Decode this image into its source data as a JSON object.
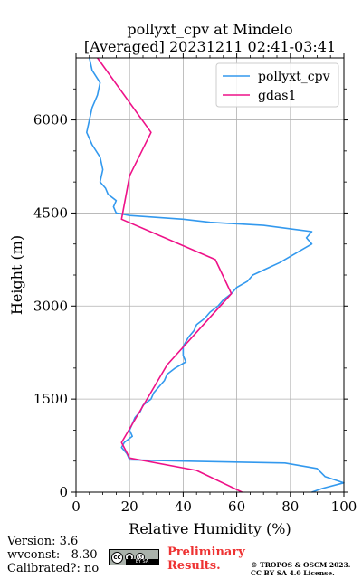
{
  "chart_data": {
    "type": "line",
    "title": "pollyxt_cpv at Mindelo",
    "subtitle": "[Averaged] 20231211 02:41-03:41",
    "xlabel": "Relative Humidity (%)",
    "ylabel": "Height (m)",
    "xlim": [
      0,
      100
    ],
    "ylim": [
      0,
      7000
    ],
    "xticks": [
      "0",
      "20",
      "40",
      "60",
      "80",
      "100"
    ],
    "yticks": [
      "0",
      "1500",
      "3000",
      "4500",
      "6000"
    ],
    "grid": true,
    "legend_position": "top-right",
    "series": [
      {
        "name": "pollyxt_cpv",
        "color": "#3399ee",
        "points": [
          [
            88,
            0
          ],
          [
            92,
            60
          ],
          [
            100,
            150
          ],
          [
            93,
            250
          ],
          [
            90,
            380
          ],
          [
            78,
            470
          ],
          [
            40,
            500
          ],
          [
            20,
            520
          ],
          [
            19,
            620
          ],
          [
            17,
            720
          ],
          [
            18,
            800
          ],
          [
            21,
            900
          ],
          [
            20,
            1000
          ],
          [
            21,
            1100
          ],
          [
            22,
            1200
          ],
          [
            24,
            1300
          ],
          [
            25,
            1400
          ],
          [
            28,
            1500
          ],
          [
            29,
            1600
          ],
          [
            31,
            1700
          ],
          [
            33,
            1800
          ],
          [
            34,
            1900
          ],
          [
            37,
            2000
          ],
          [
            41,
            2100
          ],
          [
            40,
            2200
          ],
          [
            40,
            2350
          ],
          [
            42,
            2500
          ],
          [
            44,
            2600
          ],
          [
            45,
            2700
          ],
          [
            48,
            2800
          ],
          [
            50,
            2900
          ],
          [
            53,
            3000
          ],
          [
            55,
            3100
          ],
          [
            58,
            3200
          ],
          [
            60,
            3300
          ],
          [
            64,
            3400
          ],
          [
            66,
            3500
          ],
          [
            71,
            3600
          ],
          [
            76,
            3700
          ],
          [
            80,
            3800
          ],
          [
            84,
            3900
          ],
          [
            88,
            4000
          ],
          [
            86,
            4100
          ],
          [
            88,
            4200
          ],
          [
            70,
            4300
          ],
          [
            50,
            4350
          ],
          [
            40,
            4400
          ],
          [
            20,
            4460
          ],
          [
            15,
            4500
          ],
          [
            14,
            4600
          ],
          [
            15,
            4700
          ],
          [
            12,
            4800
          ],
          [
            11,
            4900
          ],
          [
            9,
            5000
          ],
          [
            10,
            5200
          ],
          [
            9,
            5400
          ],
          [
            6,
            5600
          ],
          [
            4,
            5800
          ],
          [
            5,
            6000
          ],
          [
            6,
            6200
          ],
          [
            8,
            6400
          ],
          [
            9,
            6600
          ],
          [
            6,
            6800
          ],
          [
            5,
            7000
          ]
        ]
      },
      {
        "name": "gdas1",
        "color": "#ee1188",
        "points": [
          [
            62,
            0
          ],
          [
            45,
            350
          ],
          [
            20,
            550
          ],
          [
            17,
            800
          ],
          [
            34,
            2050
          ],
          [
            58,
            3200
          ],
          [
            52,
            3750
          ],
          [
            17,
            4400
          ],
          [
            20,
            5100
          ],
          [
            28,
            5800
          ],
          [
            8,
            7000
          ]
        ]
      }
    ]
  },
  "footer": {
    "version": "Version: 3.6",
    "wvconst": "wvconst:   8.30",
    "calibrated": "Calibrated?: no",
    "preliminary_line1": "Preliminary",
    "preliminary_line2": "Results.",
    "copyright_line1": "© TROPOS & OSCM 2023.",
    "copyright_line2": "CC BY SA 4.0 License.",
    "license_badge": "BY SA"
  }
}
